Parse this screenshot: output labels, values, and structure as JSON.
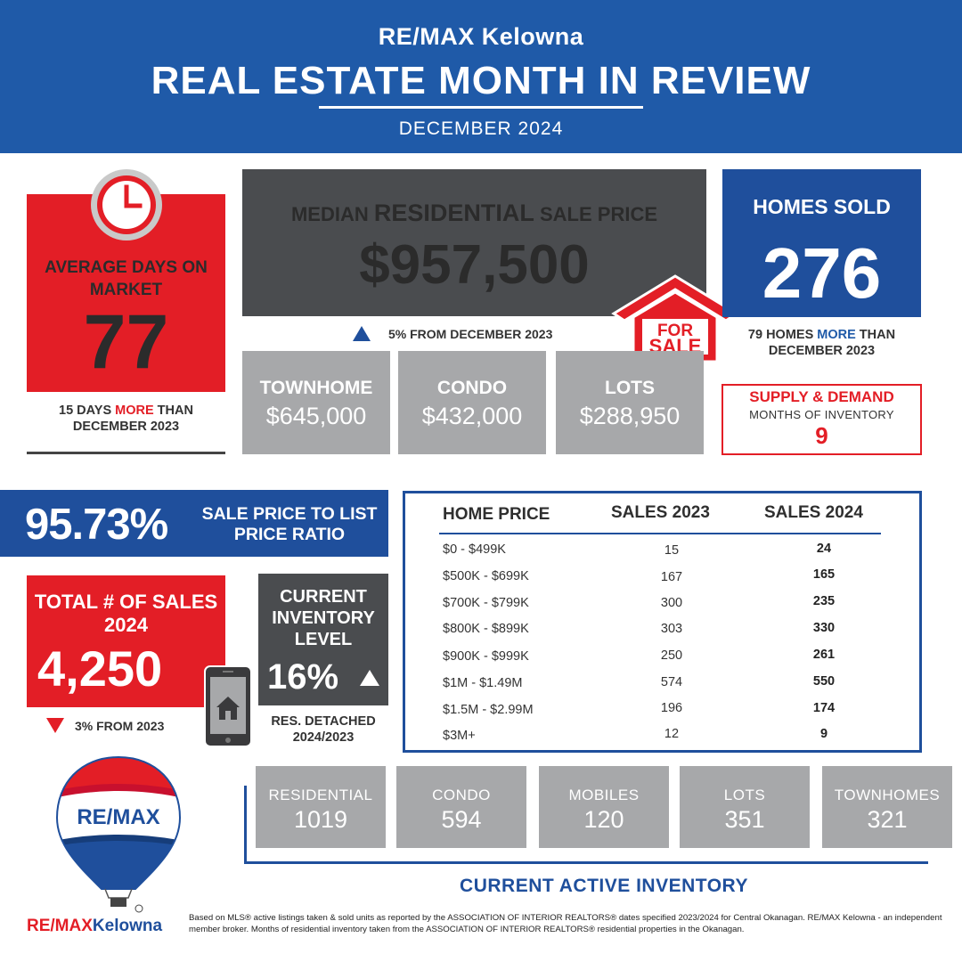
{
  "header": {
    "brand": "RE/MAX Kelowna",
    "title": "REAL ESTATE MONTH IN REVIEW",
    "month": "DECEMBER 2024",
    "color": "#1f5aa8"
  },
  "days_on_market": {
    "label": "AVERAGE DAYS ON MARKET",
    "value": "77",
    "note_pre": "15 DAYS ",
    "note_em": "MORE",
    "note_post": " THAN DECEMBER 2023",
    "icon": "clock-icon"
  },
  "median": {
    "label_pre": "MEDIAN ",
    "label_em": "RESIDENTIAL",
    "label_post": " SALE PRICE",
    "value": "$957,500",
    "change": "5% FROM DECEMBER 2023",
    "direction": "up"
  },
  "for_sale_sign": {
    "line1": "FOR",
    "line2": "SALE",
    "icon": "for-sale-house-icon"
  },
  "homes_sold": {
    "label": "HOMES SOLD",
    "value": "276",
    "note_pre": "79 HOMES ",
    "note_em": "MORE",
    "note_post": " THAN DECEMBER 2023"
  },
  "type_prices": [
    {
      "label": "TOWNHOME",
      "value": "$645,000"
    },
    {
      "label": "CONDO",
      "value": "$432,000"
    },
    {
      "label": "LOTS",
      "value": "$288,950"
    }
  ],
  "supply": {
    "title": "SUPPLY & DEMAND",
    "subtitle": "MONTHS OF INVENTORY",
    "value": "9"
  },
  "ratio": {
    "value": "95.73%",
    "label": "SALE PRICE TO LIST PRICE RATIO"
  },
  "total_sales": {
    "label": "TOTAL # OF SALES 2024",
    "value": "4,250",
    "change": "3% FROM 2023",
    "direction": "down"
  },
  "current_inventory": {
    "label": "CURRENT INVENTORY LEVEL",
    "value": "16%",
    "direction": "up",
    "note": "RES. DETACHED 2024/2023",
    "icon": "phone-house-icon"
  },
  "price_table": {
    "headers": [
      "HOME PRICE",
      "SALES 2023",
      "SALES 2024"
    ],
    "rows": [
      {
        "range": "$0 - $499K",
        "s2023": "15",
        "s2024": "24"
      },
      {
        "range": "$500K - $699K",
        "s2023": "167",
        "s2024": "165"
      },
      {
        "range": "$700K - $799K",
        "s2023": "300",
        "s2024": "235"
      },
      {
        "range": "$800K - $899K",
        "s2023": "303",
        "s2024": "330"
      },
      {
        "range": "$900K - $999K",
        "s2023": "250",
        "s2024": "261"
      },
      {
        "range": "$1M - $1.49M",
        "s2023": "574",
        "s2024": "550"
      },
      {
        "range": "$1.5M - $2.99M",
        "s2023": "196",
        "s2024": "174"
      },
      {
        "range": "$3M+",
        "s2023": "12",
        "s2024": "9"
      }
    ]
  },
  "active_inventory": {
    "title": "CURRENT ACTIVE INVENTORY",
    "items": [
      {
        "label": "RESIDENTIAL",
        "value": "1019"
      },
      {
        "label": "CONDO",
        "value": "594"
      },
      {
        "label": "MOBILES",
        "value": "120"
      },
      {
        "label": "LOTS",
        "value": "351"
      },
      {
        "label": "TOWNHOMES",
        "value": "321"
      }
    ]
  },
  "logo": {
    "balloon_text": "RE/MAX",
    "icon": "remax-balloon-icon"
  },
  "footer": {
    "brand_red": "RE/MAX",
    "brand_blue": "Kelowna",
    "disclaimer": "Based on MLS® active listings taken & sold units as reported by the ASSOCIATION OF INTERIOR REALTORS® dates specified 2023/2024 for Central Okanagan. RE/MAX Kelowna - an independent member broker. Months of residential inventory taken from the ASSOCIATION OF INTERIOR REALTORS® residential properties in the Okanagan."
  },
  "colors": {
    "red": "#e31e26",
    "blue": "#1f4f9c",
    "dark_gray": "#4a4c4f",
    "light_gray": "#a7a8aa"
  }
}
